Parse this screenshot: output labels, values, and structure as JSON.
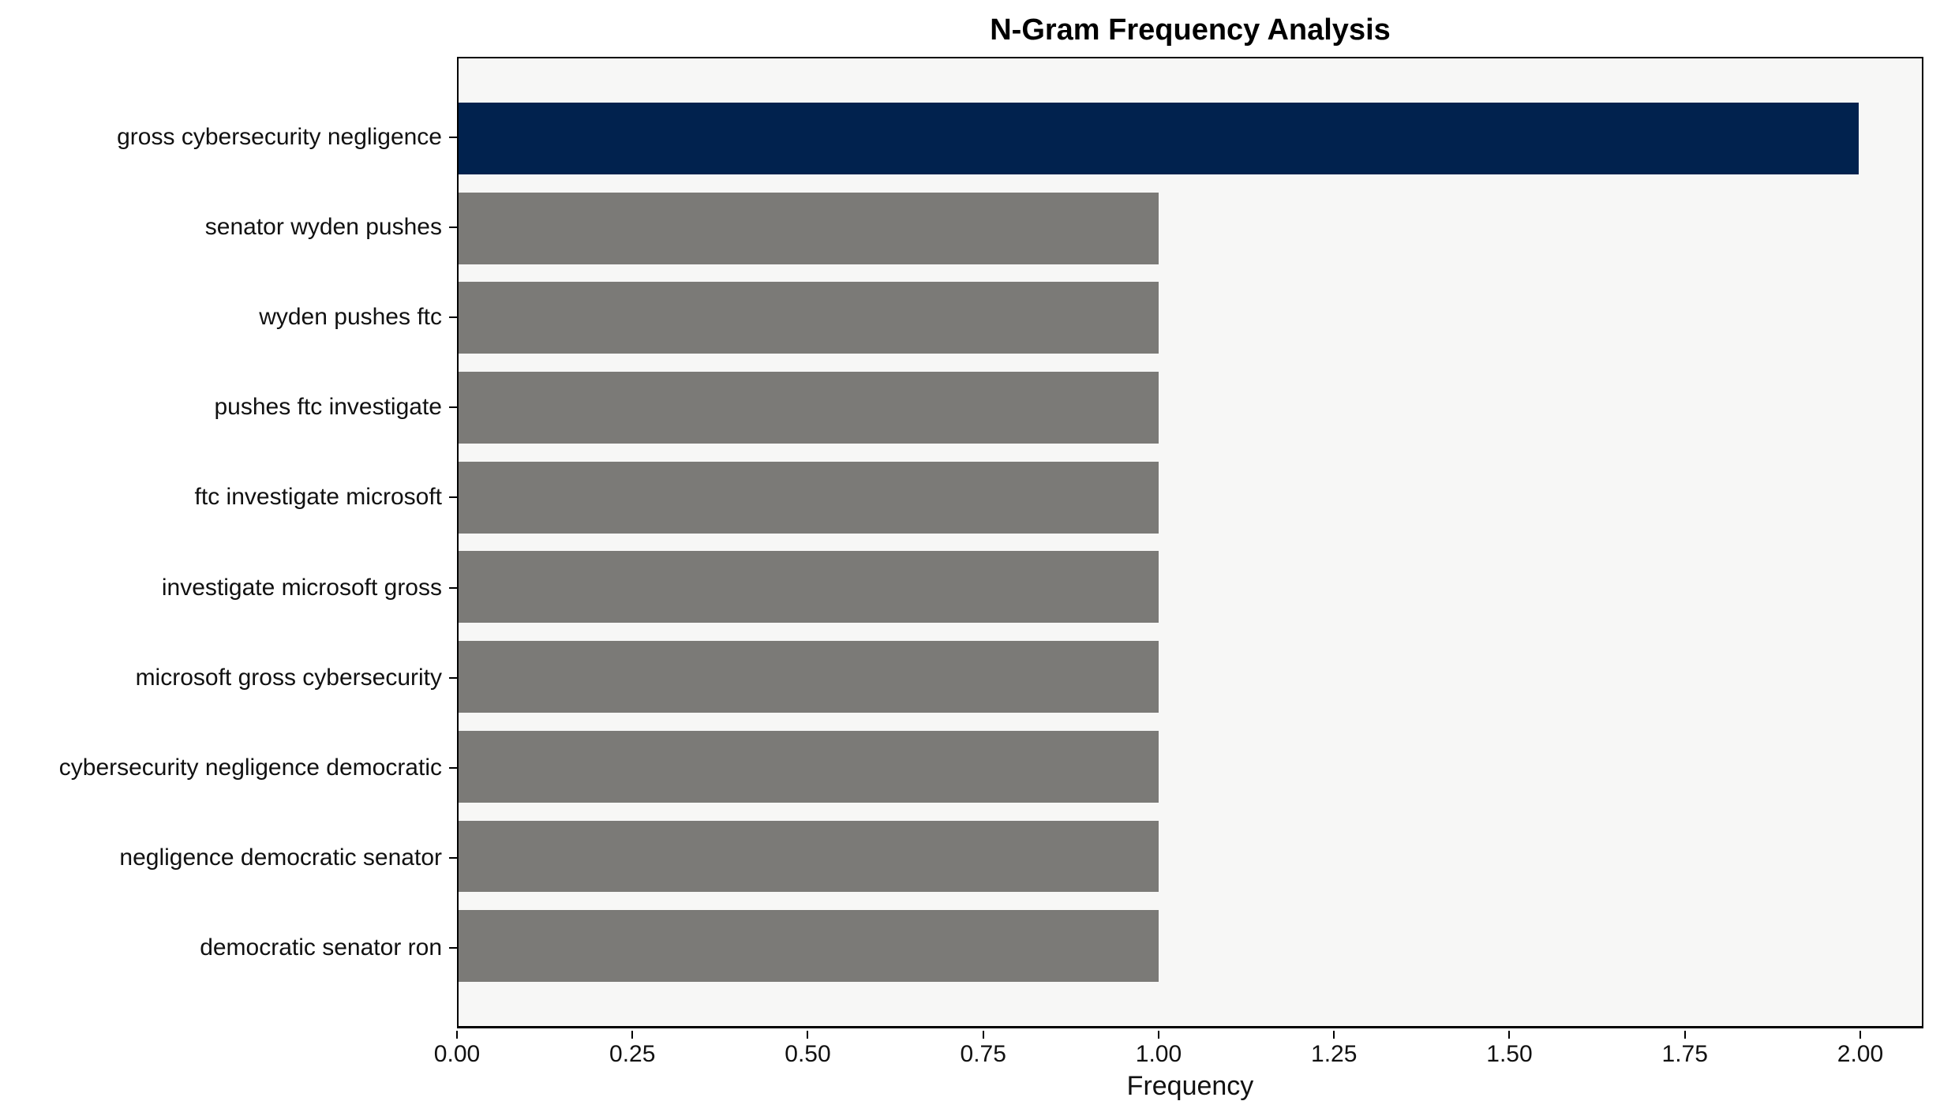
{
  "title": "N-Gram Frequency Analysis",
  "chart_data": {
    "type": "bar",
    "orientation": "horizontal",
    "title": "N-Gram Frequency Analysis",
    "categories": [
      "gross cybersecurity negligence",
      "senator wyden pushes",
      "wyden pushes ftc",
      "pushes ftc investigate",
      "ftc investigate microsoft",
      "investigate microsoft gross",
      "microsoft gross cybersecurity",
      "cybersecurity negligence democratic",
      "negligence democratic senator",
      "democratic senator ron"
    ],
    "values": [
      2,
      1,
      1,
      1,
      1,
      1,
      1,
      1,
      1,
      1
    ],
    "highlight_index": 0,
    "xlabel": "Frequency",
    "ylabel": "",
    "xlim": [
      0,
      2.09
    ],
    "xticks": [
      "0.00",
      "0.25",
      "0.50",
      "0.75",
      "1.00",
      "1.25",
      "1.50",
      "1.75",
      "2.00"
    ],
    "xtick_values": [
      0,
      0.25,
      0.5,
      0.75,
      1.0,
      1.25,
      1.5,
      1.75,
      2.0
    ],
    "grid": false,
    "legend": "none",
    "colors": {
      "highlight": "#01224E",
      "default": "#7B7A77",
      "plot_background": "#F7F7F6",
      "figure_background": "#FFFFFF",
      "spine": "#000000",
      "text": "#111111"
    }
  }
}
